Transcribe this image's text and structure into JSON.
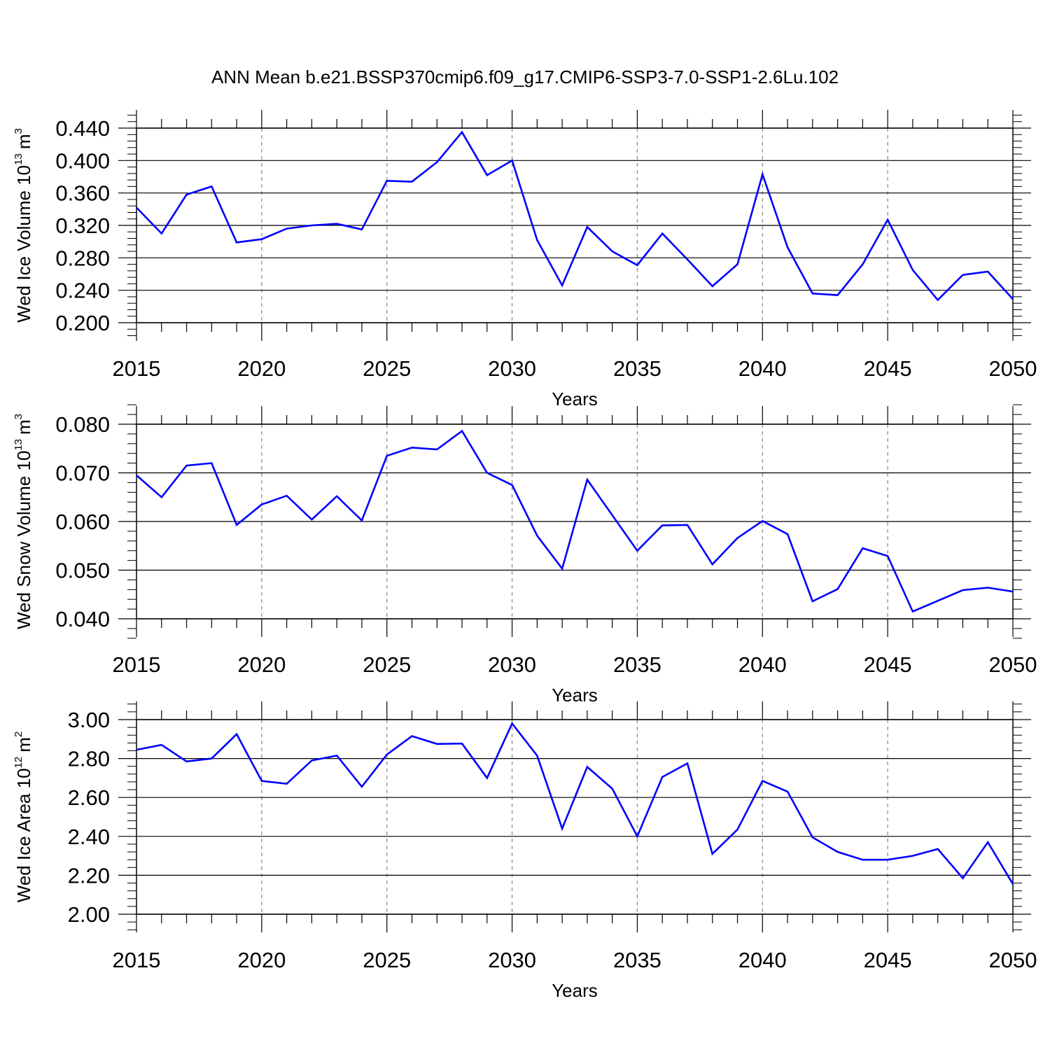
{
  "figure": {
    "title": "ANN Mean b.e21.BSSP370cmip6.f09_g17.CMIP6-SSP3-7.0-SSP1-2.6Lu.102",
    "line_color": "#0000ff"
  },
  "chart_data": [
    {
      "type": "line",
      "title": "ANN Mean b.e21.BSSP370cmip6.f09_g17.CMIP6-SSP3-7.0-SSP1-2.6Lu.102",
      "xlabel": "Years",
      "ylabel": {
        "text": "Wed Ice Volume 10",
        "sup": "13",
        "unit": "m",
        "unit_sup": "3"
      },
      "xlim": [
        2015,
        2050
      ],
      "ylim": [
        0.2,
        0.44
      ],
      "xticks": [
        2015,
        2020,
        2025,
        2030,
        2035,
        2040,
        2045,
        2050
      ],
      "xtick_labels": [
        "2015",
        "2020",
        "2025",
        "2030",
        "2035",
        "2040",
        "2045",
        "2050"
      ],
      "yticks": [
        0.2,
        0.24,
        0.28,
        0.32,
        0.36,
        0.4,
        0.44
      ],
      "ytick_labels": [
        "0.200",
        "0.240",
        "0.280",
        "0.320",
        "0.360",
        "0.400",
        "0.440"
      ],
      "grid": "vertical dashed",
      "x": [
        2015,
        2016,
        2017,
        2018,
        2019,
        2020,
        2021,
        2022,
        2023,
        2024,
        2025,
        2026,
        2027,
        2028,
        2029,
        2030,
        2031,
        2032,
        2033,
        2034,
        2035,
        2036,
        2037,
        2038,
        2039,
        2040,
        2041,
        2042,
        2043,
        2044,
        2045,
        2046,
        2047,
        2048,
        2049,
        2050
      ],
      "series": [
        {
          "values": [
            0.342,
            0.31,
            0.358,
            0.368,
            0.299,
            0.303,
            0.316,
            0.32,
            0.322,
            0.315,
            0.375,
            0.374,
            0.398,
            0.435,
            0.382,
            0.4,
            0.302,
            0.246,
            0.318,
            0.288,
            0.271,
            0.31,
            0.278,
            0.245,
            0.272,
            0.383,
            0.293,
            0.236,
            0.234,
            0.272,
            0.327,
            0.265,
            0.228,
            0.259,
            0.263,
            0.229
          ]
        }
      ]
    },
    {
      "type": "line",
      "xlabel": "Years",
      "ylabel": {
        "text": "Wed Snow Volume 10",
        "sup": "13",
        "unit": "m",
        "unit_sup": "3"
      },
      "xlim": [
        2015,
        2050
      ],
      "ylim": [
        0.04,
        0.08
      ],
      "xticks": [
        2015,
        2020,
        2025,
        2030,
        2035,
        2040,
        2045,
        2050
      ],
      "xtick_labels": [
        "2015",
        "2020",
        "2025",
        "2030",
        "2035",
        "2040",
        "2045",
        "2050"
      ],
      "yticks": [
        0.04,
        0.05,
        0.06,
        0.07,
        0.08
      ],
      "ytick_labels": [
        "0.040",
        "0.050",
        "0.060",
        "0.070",
        "0.080"
      ],
      "grid": "vertical dashed",
      "x": [
        2015,
        2016,
        2017,
        2018,
        2019,
        2020,
        2021,
        2022,
        2023,
        2024,
        2025,
        2026,
        2027,
        2028,
        2029,
        2030,
        2031,
        2032,
        2033,
        2034,
        2035,
        2036,
        2037,
        2038,
        2039,
        2040,
        2041,
        2042,
        2043,
        2044,
        2045,
        2046,
        2047,
        2048,
        2049,
        2050
      ],
      "series": [
        {
          "values": [
            0.0695,
            0.065,
            0.0715,
            0.072,
            0.0593,
            0.0635,
            0.0653,
            0.0604,
            0.0652,
            0.0602,
            0.0735,
            0.0752,
            0.0748,
            0.0786,
            0.07,
            0.0675,
            0.0571,
            0.0503,
            0.0686,
            0.0613,
            0.054,
            0.0592,
            0.0593,
            0.0512,
            0.0566,
            0.0601,
            0.0574,
            0.0436,
            0.0461,
            0.0545,
            0.0529,
            0.0415,
            0.0437,
            0.0459,
            0.0464,
            0.0456
          ]
        }
      ]
    },
    {
      "type": "line",
      "xlabel": "Years",
      "ylabel": {
        "text": "Wed Ice Area 10",
        "sup": "12",
        "unit": "m",
        "unit_sup": "2"
      },
      "xlim": [
        2015,
        2050
      ],
      "ylim": [
        2.0,
        3.0
      ],
      "xticks": [
        2015,
        2020,
        2025,
        2030,
        2035,
        2040,
        2045,
        2050
      ],
      "xtick_labels": [
        "2015",
        "2020",
        "2025",
        "2030",
        "2035",
        "2040",
        "2045",
        "2050"
      ],
      "yticks": [
        2.0,
        2.2,
        2.4,
        2.6,
        2.8,
        3.0
      ],
      "ytick_labels": [
        "2.00",
        "2.20",
        "2.40",
        "2.60",
        "2.80",
        "3.00"
      ],
      "grid": "vertical dashed",
      "x": [
        2015,
        2016,
        2017,
        2018,
        2019,
        2020,
        2021,
        2022,
        2023,
        2024,
        2025,
        2026,
        2027,
        2028,
        2029,
        2030,
        2031,
        2032,
        2033,
        2034,
        2035,
        2036,
        2037,
        2038,
        2039,
        2040,
        2041,
        2042,
        2043,
        2044,
        2045,
        2046,
        2047,
        2048,
        2049,
        2050
      ],
      "series": [
        {
          "values": [
            2.845,
            2.87,
            2.785,
            2.8,
            2.925,
            2.685,
            2.67,
            2.79,
            2.815,
            2.655,
            2.82,
            2.915,
            2.875,
            2.877,
            2.7,
            2.98,
            2.815,
            2.44,
            2.757,
            2.645,
            2.4,
            2.705,
            2.775,
            2.31,
            2.435,
            2.685,
            2.63,
            2.395,
            2.32,
            2.28,
            2.28,
            2.3,
            2.335,
            2.185,
            2.37,
            2.155
          ]
        }
      ]
    }
  ]
}
